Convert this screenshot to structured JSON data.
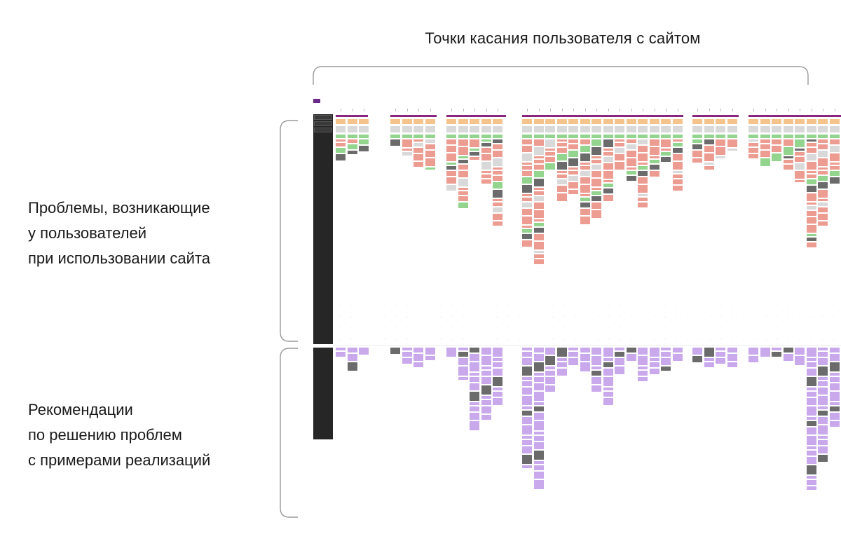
{
  "top_title": "Точки касания пользователя с сайтом",
  "left_labels": {
    "problems": [
      "Проблемы, возникающие",
      "у пользователей",
      "при использовании сайта"
    ],
    "recommendations": [
      "Рекомендации",
      "по решению проблем",
      "с примерами реализаций"
    ]
  },
  "colors": {
    "band": "#8b2680",
    "header_cells": "#f5c38c",
    "positive": "#93d48e",
    "problem": "#ec9c90",
    "recommendation": "#c9a8ec",
    "left_column": "#262626"
  }
}
